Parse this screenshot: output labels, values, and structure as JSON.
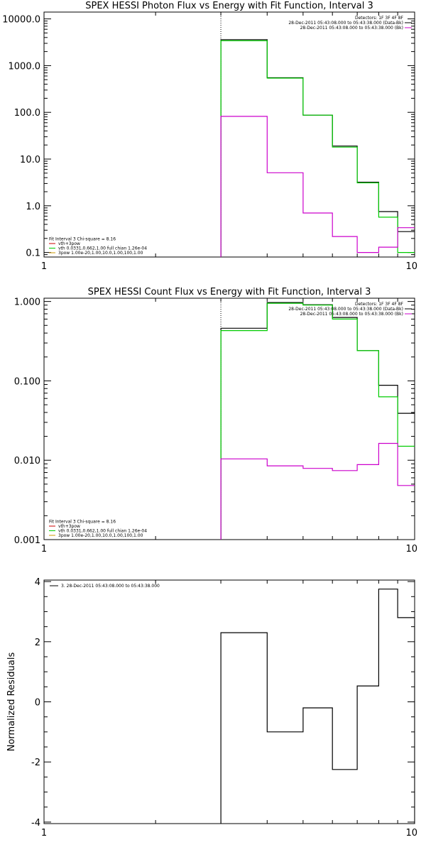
{
  "chart_data": [
    {
      "type": "line",
      "title": "SPEX HESSI Photon Flux vs Energy with Fit Function, Interval 3",
      "xscale": "log",
      "yscale": "log",
      "xlim": [
        1,
        10
      ],
      "ylim": [
        0.08,
        14000
      ],
      "xticks": [
        {
          "v": 1,
          "label": "1"
        },
        {
          "v": 10,
          "label": "10"
        }
      ],
      "yticks": [
        {
          "v": 0.1,
          "label": "0.1"
        },
        {
          "v": 1,
          "label": "1.0"
        },
        {
          "v": 10,
          "label": "10.0"
        },
        {
          "v": 100,
          "label": "100.0"
        },
        {
          "v": 1000,
          "label": "1000.0"
        },
        {
          "v": 10000,
          "label": "10000.0"
        }
      ],
      "vline_x": 3,
      "bin_edges": [
        3,
        4,
        5,
        6,
        7,
        8,
        9,
        10
      ],
      "series": [
        {
          "color": "#000000",
          "values": [
            3600,
            550,
            87,
            19,
            3.2,
            0.75,
            0.28
          ]
        },
        {
          "color": "#00cc00",
          "values": [
            3400,
            540,
            87,
            18,
            3.1,
            0.57,
            0.1
          ]
        },
        {
          "color": "#cc00cc",
          "values": [
            82,
            5.1,
            0.7,
            0.22,
            0.1,
            0.13,
            0.34
          ]
        }
      ],
      "legend_top": [
        {
          "text": "Detectors: 1F 3F 4F 8F",
          "color": "#000000"
        },
        {
          "text": "28-Dec-2011 05:43:08.000 to 05:43:38.000 (Data-Bk)",
          "color": "#000000"
        },
        {
          "text": "28-Dec-2011 05:43:08.000 to 05:43:38.000 (Bk)",
          "color": "#cc00cc"
        }
      ],
      "legend_bottom": [
        {
          "text": "Fit Interval 3   Chi-square = 8.16",
          "color": "#000000"
        },
        {
          "text": "vth+3pow",
          "color": "#cc0000"
        },
        {
          "text": "vth 0.0331,0.662,1.00   full chian 1.26e-04",
          "color": "#00cc00"
        },
        {
          "text": "3pow 1.00e-20,1.00,10.0,1.00,100,1.00",
          "color": "#cc9900"
        }
      ]
    },
    {
      "type": "line",
      "title": "SPEX HESSI Count Flux vs Energy with Fit Function, Interval 3",
      "xscale": "log",
      "yscale": "log",
      "xlim": [
        1,
        10
      ],
      "ylim": [
        0.001,
        1.1
      ],
      "xticks": [
        {
          "v": 1,
          "label": "1"
        },
        {
          "v": 10,
          "label": "10"
        }
      ],
      "yticks": [
        {
          "v": 0.001,
          "label": "0.001"
        },
        {
          "v": 0.01,
          "label": "0.010"
        },
        {
          "v": 0.1,
          "label": "0.100"
        },
        {
          "v": 1,
          "label": "1.000"
        }
      ],
      "vline_x": 3,
      "bin_edges": [
        3,
        4,
        5,
        6,
        7,
        8,
        9,
        10
      ],
      "series": [
        {
          "color": "#000000",
          "values": [
            0.46,
            0.97,
            0.91,
            0.63,
            0.24,
            0.088,
            0.039
          ]
        },
        {
          "color": "#00cc00",
          "values": [
            0.43,
            0.95,
            0.9,
            0.6,
            0.24,
            0.063,
            0.015
          ]
        },
        {
          "color": "#cc00cc",
          "values": [
            0.0104,
            0.0085,
            0.0079,
            0.0074,
            0.0088,
            0.0163,
            0.0048
          ]
        }
      ],
      "legend_top": [
        {
          "text": "Detectors: 1F 3F 4F 8F",
          "color": "#000000"
        },
        {
          "text": "28-Dec-2011 05:43:08.000 to 05:43:38.000 (Data-Bk)",
          "color": "#000000"
        },
        {
          "text": "28-Dec-2011 05:43:08.000 to 05:43:38.000 (Bk)",
          "color": "#cc00cc"
        }
      ],
      "legend_bottom": [
        {
          "text": "Fit Interval 3   Chi-square = 8.16",
          "color": "#000000"
        },
        {
          "text": "vth+3pow",
          "color": "#cc0000"
        },
        {
          "text": "vth 0.0331,0.662,1.00   full chian 1.26e-04",
          "color": "#00cc00"
        },
        {
          "text": "3pow 1.00e-20,1.00,10.0,1.00,100,1.00",
          "color": "#cc9900"
        }
      ]
    },
    {
      "type": "line",
      "title": "",
      "ylabel": "Normalized Residuals",
      "xscale": "log",
      "yscale": "linear",
      "xlim": [
        1,
        10
      ],
      "ylim": [
        -4.05,
        4.05
      ],
      "xticks": [
        {
          "v": 1,
          "label": "1"
        },
        {
          "v": 10,
          "label": "10"
        }
      ],
      "yticks": [
        {
          "v": -4,
          "label": "-4"
        },
        {
          "v": -2,
          "label": "-2"
        },
        {
          "v": 0,
          "label": "0"
        },
        {
          "v": 2,
          "label": "2"
        },
        {
          "v": 4,
          "label": "4"
        }
      ],
      "bin_edges": [
        3,
        4,
        5,
        6,
        7,
        8,
        9,
        10
      ],
      "series": [
        {
          "color": "#000000",
          "values": [
            2.3,
            -1.0,
            -0.2,
            -2.25,
            0.53,
            3.75,
            2.8
          ]
        }
      ],
      "legend_top": [
        {
          "text": "3. 28-Dec-2011 05:43:08.000 to 05:43:38.000",
          "color": "#000000"
        }
      ],
      "legend_bottom": []
    }
  ]
}
